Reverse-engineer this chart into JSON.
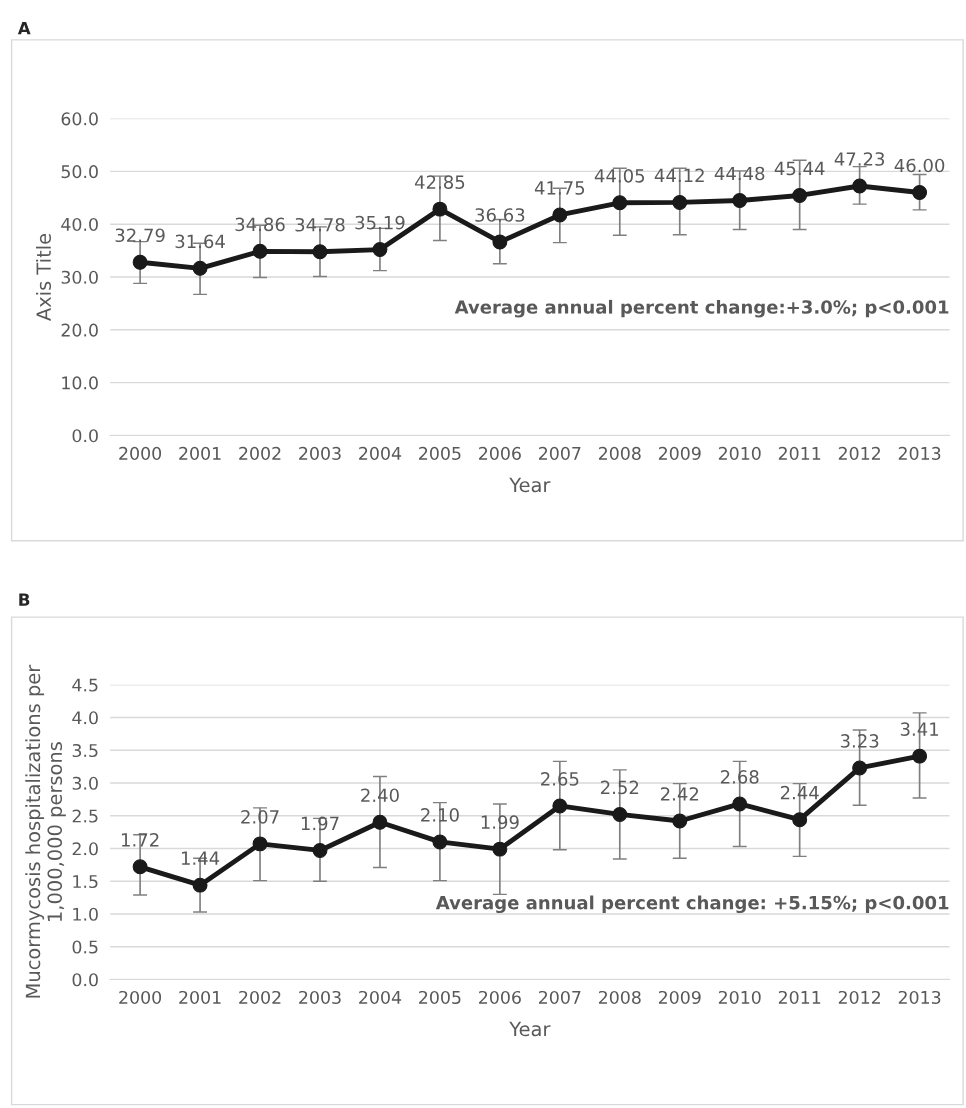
{
  "chart_data": [
    {
      "type": "line",
      "title": "A",
      "xlabel": "Year",
      "ylabel": "Axis Title",
      "categories": [
        "2000",
        "2001",
        "2002",
        "2003",
        "2004",
        "2005",
        "2006",
        "2007",
        "2008",
        "2009",
        "2010",
        "2011",
        "2012",
        "2013"
      ],
      "series": [
        {
          "color": "#1a1a1a",
          "values": [
            32.79,
            31.64,
            34.86,
            34.78,
            35.19,
            42.85,
            36.63,
            41.75,
            44.05,
            44.12,
            44.48,
            45.44,
            47.23,
            46.0
          ],
          "value_labels": [
            "32.79",
            "31.64",
            "34.86",
            "34.78",
            "35.19",
            "42.85",
            "36.63",
            "41.75",
            "44.05",
            "44.12",
            "44.48",
            "45.44",
            "47.23",
            "46.00"
          ],
          "errors": [
            [
              28.8,
              36.7
            ],
            [
              26.7,
              36.4
            ],
            [
              29.9,
              39.8
            ],
            [
              30.1,
              39.5
            ],
            [
              31.2,
              39.2
            ],
            [
              36.9,
              49.1
            ],
            [
              32.5,
              40.9
            ],
            [
              36.5,
              46.8
            ],
            [
              37.9,
              50.6
            ],
            [
              38.0,
              50.6
            ],
            [
              39.0,
              50.1
            ],
            [
              39.0,
              52.1
            ],
            [
              43.8,
              50.9
            ],
            [
              42.7,
              49.4
            ]
          ]
        }
      ],
      "ylim": [
        0,
        60
      ],
      "yticks": [
        {
          "value": 0,
          "label": "0.0"
        },
        {
          "value": 10,
          "label": "10.0"
        },
        {
          "value": 20,
          "label": "20.0"
        },
        {
          "value": 30,
          "label": "30.0"
        },
        {
          "value": 40,
          "label": "40.0"
        },
        {
          "value": 50,
          "label": "50.0"
        },
        {
          "value": 60,
          "label": "60.0"
        }
      ],
      "grid": "y",
      "marker": "circle",
      "line_style": "solid",
      "annotations": [
        "Average annual percent change:+3.0%; p<0.001"
      ]
    },
    {
      "type": "line",
      "title": "B",
      "xlabel": "Year",
      "ylabel": "Mucormycosis hospitalizations per 1,000,000 persons",
      "categories": [
        "2000",
        "2001",
        "2002",
        "2003",
        "2004",
        "2005",
        "2006",
        "2007",
        "2008",
        "2009",
        "2010",
        "2011",
        "2012",
        "2013"
      ],
      "series": [
        {
          "color": "#1a1a1a",
          "values": [
            1.72,
            1.44,
            2.07,
            1.97,
            2.4,
            2.1,
            1.99,
            2.65,
            2.52,
            2.42,
            2.68,
            2.44,
            3.23,
            3.41
          ],
          "value_labels": [
            "1.72",
            "1.44",
            "2.07",
            "1.97",
            "2.40",
            "2.10",
            "1.99",
            "2.65",
            "2.52",
            "2.42",
            "2.68",
            "2.44",
            "3.23",
            "3.41"
          ],
          "errors": [
            [
              1.29,
              2.21
            ],
            [
              1.03,
              1.85
            ],
            [
              1.51,
              2.62
            ],
            [
              1.5,
              2.46
            ],
            [
              1.71,
              3.1
            ],
            [
              1.51,
              2.7
            ],
            [
              1.3,
              2.68
            ],
            [
              1.98,
              3.33
            ],
            [
              1.84,
              3.2
            ],
            [
              1.85,
              2.99
            ],
            [
              2.03,
              3.33
            ],
            [
              1.88,
              2.99
            ],
            [
              2.66,
              3.81
            ],
            [
              2.77,
              4.07
            ]
          ]
        }
      ],
      "ylim": [
        0,
        4.5
      ],
      "yticks": [
        {
          "value": 0,
          "label": "0.0"
        },
        {
          "value": 0.5,
          "label": "0.5"
        },
        {
          "value": 1,
          "label": "1.0"
        },
        {
          "value": 1.5,
          "label": "1.5"
        },
        {
          "value": 2,
          "label": "2.0"
        },
        {
          "value": 2.5,
          "label": "2.5"
        },
        {
          "value": 3,
          "label": "3.0"
        },
        {
          "value": 3.5,
          "label": "3.5"
        },
        {
          "value": 4,
          "label": "4.0"
        },
        {
          "value": 4.5,
          "label": "4.5"
        }
      ],
      "grid": "y",
      "marker": "circle",
      "line_style": "solid",
      "annotations": [
        "Average annual percent change: +5.15%; p<0.001"
      ]
    }
  ]
}
